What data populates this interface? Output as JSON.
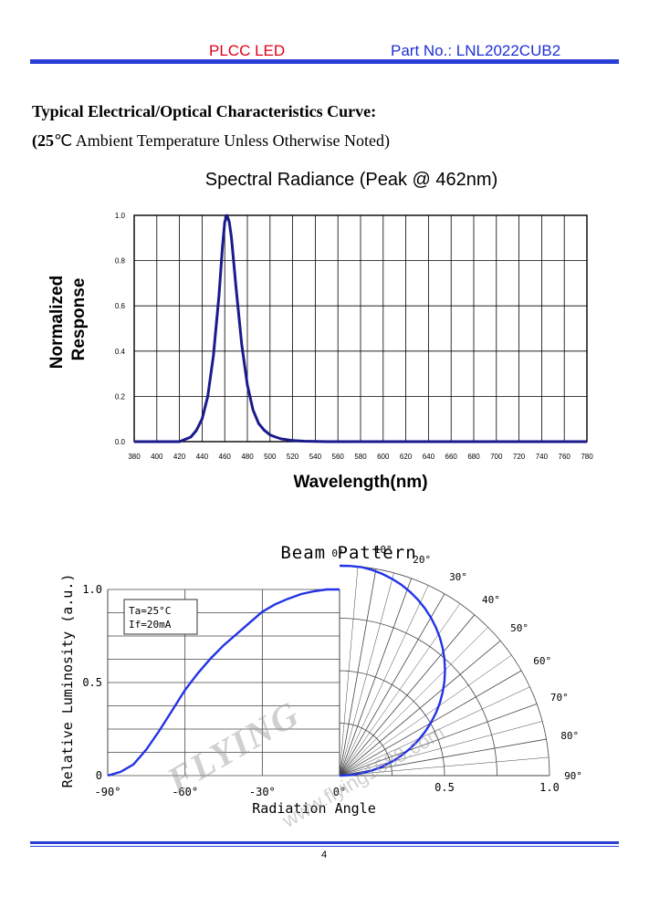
{
  "header": {
    "product": "PLCC LED",
    "part_number": "Part No.: LNL2022CUB2"
  },
  "section": {
    "title": "Typical Electrical/Optical Characteristics Curve:",
    "condition_bold": "(25",
    "condition_rest": "℃ Ambient Temperature Unless Otherwise Noted)"
  },
  "chart_data": [
    {
      "type": "line",
      "title": "Spectral Radiance (Peak @ 462nm)",
      "xlabel": "Wavelength(nm)",
      "ylabel": "Normalized Response",
      "xlim": [
        380,
        780
      ],
      "ylim": [
        0,
        1.0
      ],
      "x_ticks": [
        "380",
        "400",
        "420",
        "440",
        "460",
        "480",
        "500",
        "520",
        "540",
        "560",
        "580",
        "600",
        "620",
        "640",
        "660",
        "680",
        "700",
        "720",
        "740",
        "760",
        "780"
      ],
      "y_ticks": [
        "0.0",
        "0.2",
        "0.4",
        "0.6",
        "0.8",
        "1.0"
      ],
      "grid": true,
      "line_color": "#1a1a8c",
      "series": [
        {
          "x": [
            380,
            420,
            425,
            430,
            435,
            440,
            445,
            450,
            455,
            458,
            460,
            462,
            464,
            466,
            470,
            475,
            480,
            485,
            490,
            495,
            500,
            505,
            510,
            520,
            530,
            540,
            550,
            560,
            780
          ],
          "values": [
            0,
            0,
            0.01,
            0.02,
            0.05,
            0.1,
            0.2,
            0.38,
            0.65,
            0.86,
            0.97,
            1.0,
            0.97,
            0.9,
            0.68,
            0.43,
            0.25,
            0.14,
            0.08,
            0.05,
            0.03,
            0.02,
            0.012,
            0.005,
            0.002,
            0.001,
            0,
            0,
            0
          ]
        }
      ]
    },
    {
      "type": "line",
      "title": "Beam Pattern",
      "xlabel": "Radiation Angle",
      "ylabel": "Relative Luminosity (a.u.)",
      "xlim": [
        -90,
        0
      ],
      "ylim": [
        0,
        1.0
      ],
      "x_ticks": [
        "-90°",
        "-60°",
        "-30°",
        "0°"
      ],
      "y_ticks": [
        "0",
        "0.5",
        "1.0"
      ],
      "radial_ticks": [
        "0.5",
        "1.0"
      ],
      "angle_labels": [
        "0°",
        "10°",
        "20°",
        "30°",
        "40°",
        "50°",
        "60°",
        "70°",
        "80°",
        "90°"
      ],
      "legend": [
        "Ta=25°C",
        "If=20mA"
      ],
      "line_color": "#2233e6",
      "series": [
        {
          "x": [
            -90,
            -85,
            -80,
            -75,
            -70,
            -65,
            -60,
            -55,
            -50,
            -45,
            -40,
            -35,
            -30,
            -25,
            -20,
            -15,
            -10,
            -5,
            0
          ],
          "values": [
            0,
            0.02,
            0.06,
            0.14,
            0.24,
            0.35,
            0.46,
            0.55,
            0.63,
            0.7,
            0.76,
            0.82,
            0.88,
            0.92,
            0.95,
            0.975,
            0.99,
            1.0,
            1.0
          ]
        }
      ]
    }
  ],
  "footer": {
    "page": "4"
  },
  "watermark": {
    "brand": "FLYING",
    "site": "www.flying1688.com"
  }
}
